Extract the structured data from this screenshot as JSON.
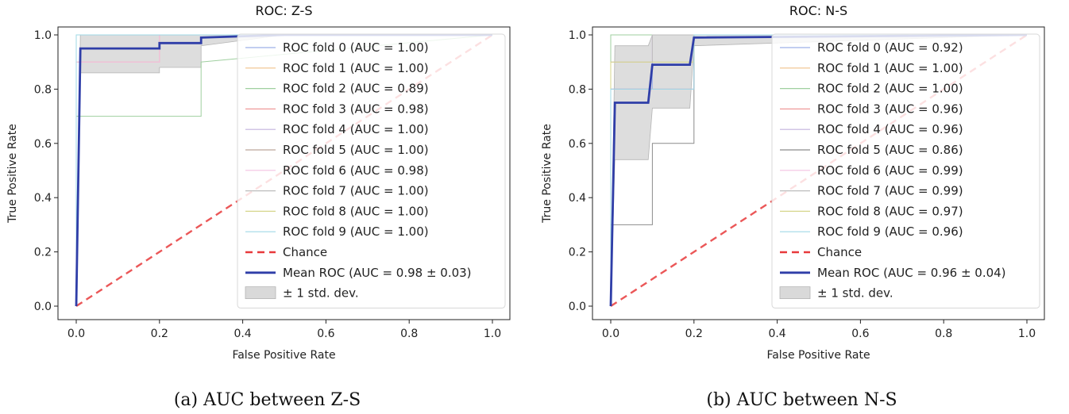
{
  "chart_data": [
    {
      "type": "line",
      "title": "ROC: Z-S",
      "xlabel": "False Positive Rate",
      "ylabel": "True Positive Rate",
      "xlim": [
        0.0,
        1.0
      ],
      "ylim": [
        0.0,
        1.0
      ],
      "xticks": [
        "0.0",
        "0.2",
        "0.4",
        "0.6",
        "0.8",
        "1.0"
      ],
      "yticks": [
        "0.0",
        "0.2",
        "0.4",
        "0.6",
        "0.8",
        "1.0"
      ],
      "legend_position": "top-right",
      "caption": "(a) AUC between Z-S",
      "folds": [
        {
          "name": "ROC fold 0 (AUC = 1.00)",
          "color": "#9db0e8",
          "x": [
            0,
            0,
            1
          ],
          "y": [
            0,
            1,
            1
          ]
        },
        {
          "name": "ROC fold 1 (AUC = 1.00)",
          "color": "#f0c08a",
          "x": [
            0,
            0,
            1
          ],
          "y": [
            0,
            1,
            1
          ]
        },
        {
          "name": "ROC fold 2 (AUC = 0.89)",
          "color": "#9fcf9f",
          "x": [
            0,
            0,
            0.3,
            0.3,
            1
          ],
          "y": [
            0,
            0.7,
            0.7,
            0.9,
            1
          ]
        },
        {
          "name": "ROC fold 3 (AUC = 0.98)",
          "color": "#ef9a9a",
          "x": [
            0,
            0,
            0.2,
            0.2,
            1
          ],
          "y": [
            0,
            0.9,
            0.9,
            1,
            1
          ]
        },
        {
          "name": "ROC fold 4 (AUC = 1.00)",
          "color": "#c3b3de",
          "x": [
            0,
            0,
            1
          ],
          "y": [
            0,
            1,
            1
          ]
        },
        {
          "name": "ROC fold 5 (AUC = 1.00)",
          "color": "#bca89a",
          "x": [
            0,
            0,
            1
          ],
          "y": [
            0,
            1,
            1
          ]
        },
        {
          "name": "ROC fold 6 (AUC = 0.98)",
          "color": "#f4c3e2",
          "x": [
            0,
            0,
            0.2,
            0.2,
            1
          ],
          "y": [
            0,
            0.9,
            0.9,
            1,
            1
          ]
        },
        {
          "name": "ROC fold 7 (AUC = 1.00)",
          "color": "#bdbdbd",
          "x": [
            0,
            0,
            1
          ],
          "y": [
            0,
            1,
            1
          ]
        },
        {
          "name": "ROC fold 8 (AUC = 1.00)",
          "color": "#d6d68a",
          "x": [
            0,
            0,
            1
          ],
          "y": [
            0,
            1,
            1
          ]
        },
        {
          "name": "ROC fold 9 (AUC = 1.00)",
          "color": "#9fd8e6",
          "x": [
            0,
            0,
            1
          ],
          "y": [
            0,
            1,
            1
          ]
        }
      ],
      "chance": {
        "name": "Chance",
        "color": "#e8393b",
        "x": [
          0,
          1
        ],
        "y": [
          0,
          1
        ]
      },
      "mean": {
        "name": "Mean ROC (AUC = 0.98 ± 0.03)",
        "color": "#2f3ea8",
        "x": [
          0,
          0.01,
          0.2,
          0.2,
          0.3,
          0.3,
          0.5,
          1
        ],
        "y": [
          0,
          0.95,
          0.95,
          0.97,
          0.97,
          0.99,
          1,
          1
        ]
      },
      "std": {
        "name": "± 1 std. dev.",
        "color": "#d9d9d9",
        "x": [
          0,
          0.01,
          0.2,
          0.2,
          0.3,
          0.3,
          0.5,
          1
        ],
        "upper": [
          0,
          1,
          1,
          1,
          1,
          1,
          1,
          1
        ],
        "lower": [
          0,
          0.86,
          0.86,
          0.88,
          0.88,
          0.96,
          1,
          1
        ]
      }
    },
    {
      "type": "line",
      "title": "ROC: N-S",
      "xlabel": "False Positive Rate",
      "ylabel": "True Positive Rate",
      "xlim": [
        0.0,
        1.0
      ],
      "ylim": [
        0.0,
        1.0
      ],
      "xticks": [
        "0.0",
        "0.2",
        "0.4",
        "0.6",
        "0.8",
        "1.0"
      ],
      "yticks": [
        "0.0",
        "0.2",
        "0.4",
        "0.6",
        "0.8",
        "1.0"
      ],
      "legend_position": "top-right",
      "caption": "(b) AUC between N-S",
      "folds": [
        {
          "name": "ROC fold 0 (AUC = 0.92)",
          "color": "#9db0e8",
          "x": [
            0,
            0,
            0.1,
            0.1,
            1
          ],
          "y": [
            0,
            0.8,
            0.8,
            1,
            1
          ]
        },
        {
          "name": "ROC fold 1 (AUC = 1.00)",
          "color": "#f0c08a",
          "x": [
            0,
            0,
            1
          ],
          "y": [
            0,
            1,
            1
          ]
        },
        {
          "name": "ROC fold 2 (AUC = 1.00)",
          "color": "#9fcf9f",
          "x": [
            0,
            0,
            1
          ],
          "y": [
            0,
            1,
            1
          ]
        },
        {
          "name": "ROC fold 3 (AUC = 0.96)",
          "color": "#ef9a9a",
          "x": [
            0,
            0,
            0.2,
            0.2,
            1
          ],
          "y": [
            0,
            0.8,
            0.8,
            1,
            1
          ]
        },
        {
          "name": "ROC fold 4 (AUC = 0.96)",
          "color": "#c3b3de",
          "x": [
            0,
            0,
            0.2,
            0.2,
            1
          ],
          "y": [
            0,
            0.8,
            0.8,
            1,
            1
          ]
        },
        {
          "name": "ROC fold 5 (AUC = 0.86)",
          "color": "#8c8c8c",
          "x": [
            0,
            0,
            0.1,
            0.1,
            0.2,
            0.2,
            1
          ],
          "y": [
            0,
            0.3,
            0.3,
            0.6,
            0.6,
            1,
            1
          ]
        },
        {
          "name": "ROC fold 6 (AUC = 0.99)",
          "color": "#f4c3e2",
          "x": [
            0,
            0,
            0.1,
            0.1,
            1
          ],
          "y": [
            0,
            0.9,
            0.9,
            1,
            1
          ]
        },
        {
          "name": "ROC fold 7 (AUC = 0.99)",
          "color": "#bdbdbd",
          "x": [
            0,
            0,
            0.1,
            0.1,
            1
          ],
          "y": [
            0,
            0.9,
            0.9,
            1,
            1
          ]
        },
        {
          "name": "ROC fold 8 (AUC = 0.97)",
          "color": "#d6d68a",
          "x": [
            0,
            0,
            0.2,
            0.2,
            1
          ],
          "y": [
            0,
            0.9,
            0.9,
            1,
            1
          ]
        },
        {
          "name": "ROC fold 9 (AUC = 0.96)",
          "color": "#9fd8e6",
          "x": [
            0,
            0,
            0.2,
            0.2,
            1
          ],
          "y": [
            0,
            0.8,
            0.8,
            1,
            1
          ]
        }
      ],
      "chance": {
        "name": "Chance",
        "color": "#e8393b",
        "x": [
          0,
          1
        ],
        "y": [
          0,
          1
        ]
      },
      "mean": {
        "name": "Mean ROC (AUC = 0.96 ± 0.04)",
        "color": "#2f3ea8",
        "x": [
          0,
          0.01,
          0.09,
          0.1,
          0.19,
          0.2,
          1
        ],
        "y": [
          0,
          0.75,
          0.75,
          0.89,
          0.89,
          0.99,
          1
        ]
      },
      "std": {
        "name": "± 1 std. dev.",
        "color": "#d9d9d9",
        "x": [
          0,
          0.01,
          0.09,
          0.1,
          0.19,
          0.2,
          1
        ],
        "upper": [
          0,
          0.96,
          0.96,
          1,
          1,
          1,
          1
        ],
        "lower": [
          0,
          0.54,
          0.54,
          0.73,
          0.73,
          0.96,
          1
        ]
      }
    }
  ]
}
